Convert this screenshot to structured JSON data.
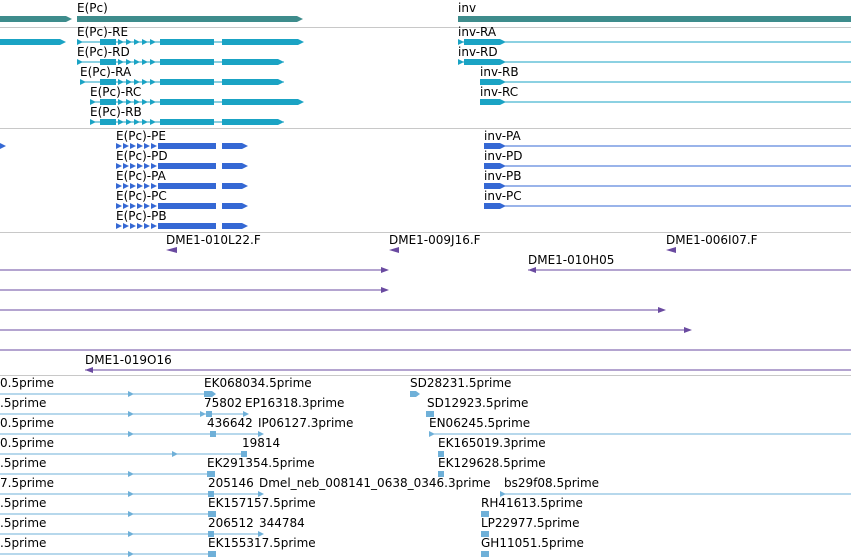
{
  "colors": {
    "gene": "#3e8c8c",
    "transcript": "#1aa3c4",
    "protein": "#3568d4",
    "clone": "#6a4aa0",
    "est": "#6fb0d8",
    "separator": "#c8c8c8"
  },
  "genes": [
    {
      "label": "E(Pc)"
    },
    {
      "label": "inv"
    }
  ],
  "transcripts": [
    {
      "label": "E(Pc)-RE"
    },
    {
      "label": "E(Pc)-RD"
    },
    {
      "label": "E(Pc)-RA"
    },
    {
      "label": "E(Pc)-RC"
    },
    {
      "label": "E(Pc)-RB"
    },
    {
      "label": "inv-RA"
    },
    {
      "label": "inv-RD"
    },
    {
      "label": "inv-RB"
    },
    {
      "label": "inv-RC"
    }
  ],
  "proteins": [
    {
      "label": "E(Pc)-PE"
    },
    {
      "label": "E(Pc)-PD"
    },
    {
      "label": "E(Pc)-PA"
    },
    {
      "label": "E(Pc)-PC"
    },
    {
      "label": "E(Pc)-PB"
    },
    {
      "label": "inv-PA"
    },
    {
      "label": "inv-PD"
    },
    {
      "label": "inv-PB"
    },
    {
      "label": "inv-PC"
    }
  ],
  "clones": [
    {
      "label": "DME1-010L22.F"
    },
    {
      "label": "DME1-009J16.F"
    },
    {
      "label": "DME1-006I07.F"
    },
    {
      "label": "DME1-010H05"
    },
    {
      "label": "DME1-019O16"
    }
  ],
  "ests": [
    {
      "label": "0.5prime"
    },
    {
      "label": ".5prime"
    },
    {
      "label": "0.5prime"
    },
    {
      "label": "0.5prime"
    },
    {
      "label": ".5prime"
    },
    {
      "label": "7.5prime"
    },
    {
      "label": ".5prime"
    },
    {
      "label": ".5prime"
    },
    {
      "label": ".5prime"
    },
    {
      "label": "EK068034.5prime"
    },
    {
      "label": "75802"
    },
    {
      "label": "EP16318.3prime"
    },
    {
      "label": "436642"
    },
    {
      "label": "IP06127.3prime"
    },
    {
      "label": "19814"
    },
    {
      "label": "EK291354.5prime"
    },
    {
      "label": "205146"
    },
    {
      "label": "Dmel_neb_008141_0638_0346.3prime"
    },
    {
      "label": "EK157157.5prime"
    },
    {
      "label": "206512"
    },
    {
      "label": "344784"
    },
    {
      "label": "EK155317.5prime"
    },
    {
      "label": "SD28231.5prime"
    },
    {
      "label": "SD12923.5prime"
    },
    {
      "label": "EN06245.5prime"
    },
    {
      "label": "EK165019.3prime"
    },
    {
      "label": "EK129628.5prime"
    },
    {
      "label": "bs29f08.5prime"
    },
    {
      "label": "RH41613.5prime"
    },
    {
      "label": "LP22977.5prime"
    },
    {
      "label": "GH11051.5prime"
    }
  ]
}
